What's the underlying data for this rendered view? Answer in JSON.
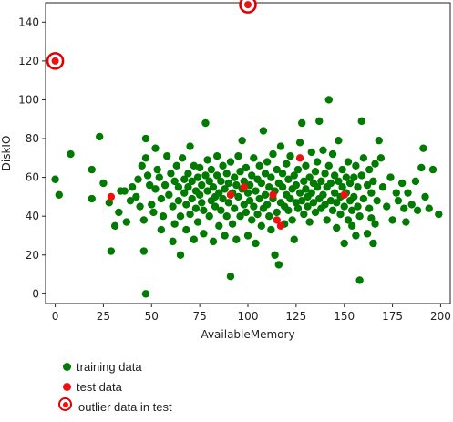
{
  "colors": {
    "training": "#007a00",
    "test": "#ee1111",
    "outlier_ring": "#e00000"
  },
  "chart_data": {
    "type": "scatter",
    "xlabel": "AvailableMemory",
    "ylabel": "DiskIO",
    "xlim": [
      -5,
      205
    ],
    "ylim": [
      -5,
      150
    ],
    "xticks": [
      0,
      25,
      50,
      75,
      100,
      125,
      150,
      175,
      200
    ],
    "yticks": [
      0,
      20,
      40,
      60,
      80,
      100,
      120,
      140
    ],
    "grid": false,
    "series": [
      {
        "name": "training data",
        "color": "#007a00",
        "points": [
          [
            0,
            59
          ],
          [
            2,
            51
          ],
          [
            8,
            72
          ],
          [
            19,
            64
          ],
          [
            19,
            49
          ],
          [
            23,
            81
          ],
          [
            25,
            57
          ],
          [
            28,
            47
          ],
          [
            29,
            22
          ],
          [
            31,
            35
          ],
          [
            33,
            42
          ],
          [
            34,
            53
          ],
          [
            36,
            53
          ],
          [
            37,
            37
          ],
          [
            39,
            48
          ],
          [
            40,
            55
          ],
          [
            42,
            50
          ],
          [
            43,
            59
          ],
          [
            44,
            45
          ],
          [
            45,
            66
          ],
          [
            46,
            38
          ],
          [
            46,
            22
          ],
          [
            47,
            80
          ],
          [
            47,
            70
          ],
          [
            47,
            0
          ],
          [
            48,
            61
          ],
          [
            49,
            56
          ],
          [
            50,
            46
          ],
          [
            51,
            42
          ],
          [
            52,
            75
          ],
          [
            52,
            54
          ],
          [
            53,
            64
          ],
          [
            54,
            60
          ],
          [
            55,
            49
          ],
          [
            55,
            33
          ],
          [
            56,
            40
          ],
          [
            57,
            56
          ],
          [
            58,
            71
          ],
          [
            59,
            51
          ],
          [
            60,
            62
          ],
          [
            61,
            45
          ],
          [
            61,
            27
          ],
          [
            62,
            58
          ],
          [
            62,
            36
          ],
          [
            63,
            66
          ],
          [
            64,
            48
          ],
          [
            64,
            55
          ],
          [
            65,
            40
          ],
          [
            65,
            20
          ],
          [
            66,
            70
          ],
          [
            67,
            52
          ],
          [
            67,
            59
          ],
          [
            68,
            33
          ],
          [
            68,
            46
          ],
          [
            69,
            62
          ],
          [
            69,
            55
          ],
          [
            70,
            41
          ],
          [
            70,
            76
          ],
          [
            71,
            49
          ],
          [
            71,
            58
          ],
          [
            72,
            28
          ],
          [
            72,
            66
          ],
          [
            73,
            44
          ],
          [
            73,
            53
          ],
          [
            74,
            37
          ],
          [
            74,
            60
          ],
          [
            75,
            51
          ],
          [
            75,
            65
          ],
          [
            76,
            47
          ],
          [
            76,
            56
          ],
          [
            77,
            43
          ],
          [
            77,
            31
          ],
          [
            78,
            88
          ],
          [
            78,
            61
          ],
          [
            79,
            53
          ],
          [
            79,
            69
          ],
          [
            80,
            40
          ],
          [
            80,
            58
          ],
          [
            81,
            48
          ],
          [
            81,
            64
          ],
          [
            82,
            27
          ],
          [
            82,
            55
          ],
          [
            83,
            45
          ],
          [
            83,
            50
          ],
          [
            84,
            61
          ],
          [
            84,
            71
          ],
          [
            85,
            35
          ],
          [
            85,
            52
          ],
          [
            86,
            58
          ],
          [
            86,
            43
          ],
          [
            87,
            66
          ],
          [
            87,
            49
          ],
          [
            88,
            30
          ],
          [
            88,
            54
          ],
          [
            89,
            62
          ],
          [
            89,
            40
          ],
          [
            90,
            57
          ],
          [
            90,
            47
          ],
          [
            91,
            9
          ],
          [
            91,
            68
          ],
          [
            92,
            36
          ],
          [
            92,
            52
          ],
          [
            93,
            60
          ],
          [
            93,
            44
          ],
          [
            94,
            28
          ],
          [
            94,
            56
          ],
          [
            95,
            50
          ],
          [
            95,
            71
          ],
          [
            96,
            63
          ],
          [
            96,
            40
          ],
          [
            97,
            79
          ],
          [
            97,
            54
          ],
          [
            98,
            46
          ],
          [
            98,
            58
          ],
          [
            99,
            42
          ],
          [
            99,
            65
          ],
          [
            100,
            52
          ],
          [
            100,
            30
          ],
          [
            101,
            56
          ],
          [
            101,
            48
          ],
          [
            102,
            61
          ],
          [
            102,
            38
          ],
          [
            103,
            45
          ],
          [
            103,
            70
          ],
          [
            104,
            53
          ],
          [
            104,
            26
          ],
          [
            105,
            59
          ],
          [
            105,
            41
          ],
          [
            106,
            66
          ],
          [
            106,
            49
          ],
          [
            107,
            35
          ],
          [
            107,
            57
          ],
          [
            108,
            84
          ],
          [
            108,
            44
          ],
          [
            109,
            51
          ],
          [
            109,
            62
          ],
          [
            110,
            46
          ],
          [
            110,
            68
          ],
          [
            111,
            55
          ],
          [
            111,
            40
          ],
          [
            112,
            60
          ],
          [
            112,
            33
          ],
          [
            113,
            49
          ],
          [
            113,
            72
          ],
          [
            114,
            53
          ],
          [
            114,
            20
          ],
          [
            115,
            64
          ],
          [
            115,
            42
          ],
          [
            116,
            57
          ],
          [
            116,
            15
          ],
          [
            117,
            47
          ],
          [
            117,
            76
          ],
          [
            118,
            55
          ],
          [
            118,
            62
          ],
          [
            119,
            45
          ],
          [
            119,
            36
          ],
          [
            120,
            51
          ],
          [
            120,
            67
          ],
          [
            121,
            59
          ],
          [
            121,
            43
          ],
          [
            122,
            49
          ],
          [
            122,
            71
          ],
          [
            123,
            54
          ],
          [
            123,
            38
          ],
          [
            124,
            61
          ],
          [
            124,
            28
          ],
          [
            125,
            47
          ],
          [
            125,
            56
          ],
          [
            126,
            64
          ],
          [
            126,
            44
          ],
          [
            127,
            52
          ],
          [
            127,
            78
          ],
          [
            128,
            88
          ],
          [
            128,
            48
          ],
          [
            129,
            58
          ],
          [
            129,
            41
          ],
          [
            130,
            54
          ],
          [
            130,
            66
          ],
          [
            131,
            45
          ],
          [
            131,
            50
          ],
          [
            132,
            60
          ],
          [
            132,
            37
          ],
          [
            133,
            52
          ],
          [
            133,
            73
          ],
          [
            134,
            47
          ],
          [
            134,
            57
          ],
          [
            135,
            42
          ],
          [
            135,
            63
          ],
          [
            136,
            55
          ],
          [
            136,
            68
          ],
          [
            137,
            49
          ],
          [
            137,
            89
          ],
          [
            138,
            58
          ],
          [
            138,
            44
          ],
          [
            139,
            51
          ],
          [
            139,
            74
          ],
          [
            140,
            46
          ],
          [
            140,
            62
          ],
          [
            141,
            55
          ],
          [
            141,
            38
          ],
          [
            142,
            66
          ],
          [
            142,
            100
          ],
          [
            143,
            48
          ],
          [
            143,
            57
          ],
          [
            144,
            43
          ],
          [
            144,
            72
          ],
          [
            145,
            52
          ],
          [
            145,
            61
          ],
          [
            146,
            47
          ],
          [
            146,
            34
          ],
          [
            147,
            58
          ],
          [
            147,
            79
          ],
          [
            148,
            50
          ],
          [
            148,
            41
          ],
          [
            149,
            64
          ],
          [
            149,
            55
          ],
          [
            150,
            45
          ],
          [
            150,
            26
          ],
          [
            151,
            60
          ],
          [
            151,
            52
          ],
          [
            152,
            38
          ],
          [
            152,
            68
          ],
          [
            153,
            48
          ],
          [
            153,
            57
          ],
          [
            154,
            43
          ],
          [
            154,
            35
          ],
          [
            155,
            60
          ],
          [
            155,
            50
          ],
          [
            156,
            30
          ],
          [
            156,
            66
          ],
          [
            157,
            45
          ],
          [
            157,
            55
          ],
          [
            158,
            7
          ],
          [
            158,
            40
          ],
          [
            159,
            89
          ],
          [
            159,
            61
          ],
          [
            160,
            49
          ],
          [
            160,
            70
          ],
          [
            162,
            56
          ],
          [
            162,
            31
          ],
          [
            163,
            44
          ],
          [
            163,
            64
          ],
          [
            164,
            39
          ],
          [
            164,
            52
          ],
          [
            165,
            26
          ],
          [
            165,
            58
          ],
          [
            166,
            36
          ],
          [
            166,
            67
          ],
          [
            167,
            48
          ],
          [
            168,
            79
          ],
          [
            169,
            70
          ],
          [
            170,
            55
          ],
          [
            172,
            45
          ],
          [
            174,
            60
          ],
          [
            175,
            38
          ],
          [
            177,
            52
          ],
          [
            178,
            48
          ],
          [
            180,
            57
          ],
          [
            181,
            44
          ],
          [
            182,
            37
          ],
          [
            183,
            52
          ],
          [
            185,
            46
          ],
          [
            187,
            58
          ],
          [
            188,
            43
          ],
          [
            190,
            65
          ],
          [
            191,
            75
          ],
          [
            192,
            50
          ],
          [
            194,
            44
          ],
          [
            196,
            64
          ],
          [
            199,
            41
          ]
        ]
      },
      {
        "name": "test data",
        "color": "#ee1111",
        "points": [
          [
            29,
            50
          ],
          [
            91,
            51
          ],
          [
            98,
            55
          ],
          [
            113,
            51
          ],
          [
            115,
            38
          ],
          [
            117,
            35
          ],
          [
            127,
            70
          ],
          [
            150,
            51
          ]
        ]
      },
      {
        "name": "outlier data in test",
        "color": "#ee1111",
        "points": [
          [
            0,
            120
          ],
          [
            100,
            149
          ]
        ]
      }
    ]
  },
  "legend": {
    "items": [
      {
        "label": "training data",
        "color": "#007a00",
        "style": "dot"
      },
      {
        "label": "test data",
        "color": "#ee1111",
        "style": "dot"
      },
      {
        "label": "outlier data in test",
        "color": "#ee1111",
        "style": "ring"
      }
    ]
  }
}
